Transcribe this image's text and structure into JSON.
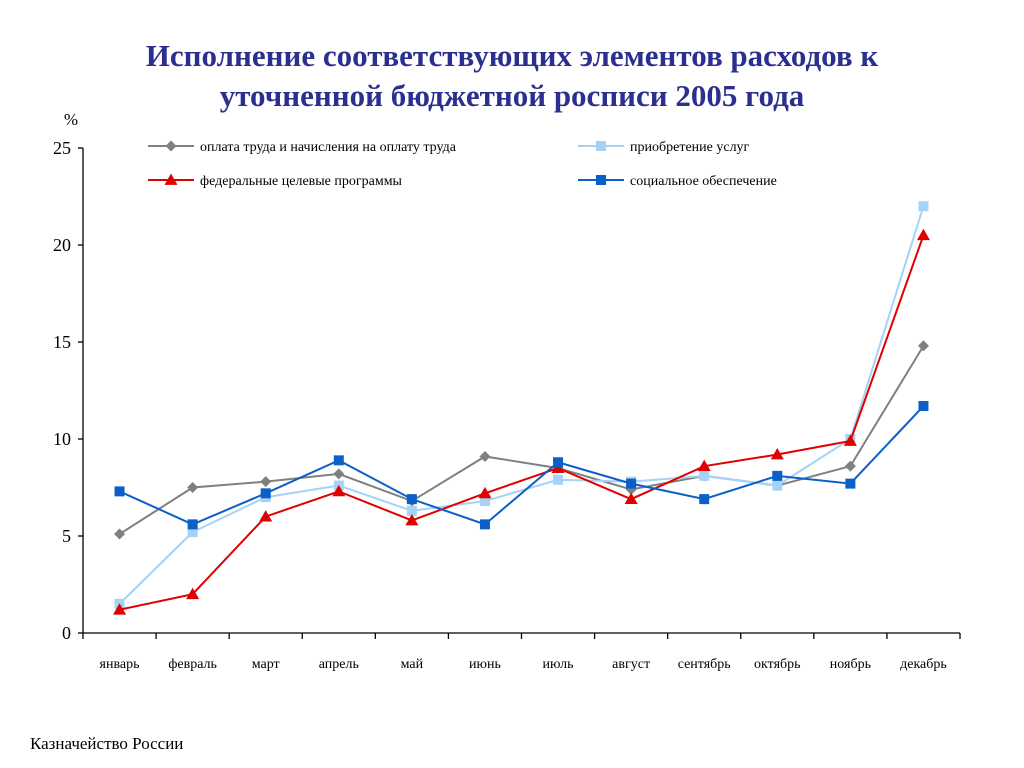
{
  "title_lines": [
    "Исполнение соответствующих элементов расходов к",
    "уточненной бюджетной росписи 2005 года"
  ],
  "footer": "Казначейство России",
  "chart_data": {
    "type": "line",
    "ylabel": "%",
    "ylim": [
      0,
      25
    ],
    "yticks": [
      0,
      5,
      10,
      15,
      20,
      25
    ],
    "grid": false,
    "legend_position": "top",
    "categories": [
      "январь",
      "февраль",
      "март",
      "апрель",
      "май",
      "июнь",
      "июль",
      "август",
      "сентябрь",
      "октябрь",
      "ноябрь",
      "декабрь"
    ],
    "series": [
      {
        "name": "оплата труда и начисления на оплату труда",
        "color": "#808080",
        "marker": "diamond",
        "values": [
          5.1,
          7.5,
          7.8,
          8.2,
          6.8,
          9.1,
          8.5,
          7.4,
          8.1,
          7.6,
          8.6,
          14.8
        ]
      },
      {
        "name": "приобретение услуг",
        "color": "#a6d2f5",
        "marker": "square",
        "values": [
          1.5,
          5.2,
          7.0,
          7.6,
          6.3,
          6.8,
          7.9,
          7.8,
          8.1,
          7.6,
          10.0,
          22.0
        ]
      },
      {
        "name": "федеральные целевые программы",
        "color": "#e00000",
        "marker": "triangle",
        "values": [
          1.2,
          2.0,
          6.0,
          7.3,
          5.8,
          7.2,
          8.5,
          6.9,
          8.6,
          9.2,
          9.9,
          20.5
        ]
      },
      {
        "name": "социальное обеспечение",
        "color": "#0b5fc8",
        "marker": "square",
        "values": [
          7.3,
          5.6,
          7.2,
          8.9,
          6.9,
          5.6,
          8.8,
          7.7,
          6.9,
          8.1,
          7.7,
          11.7
        ]
      }
    ]
  }
}
